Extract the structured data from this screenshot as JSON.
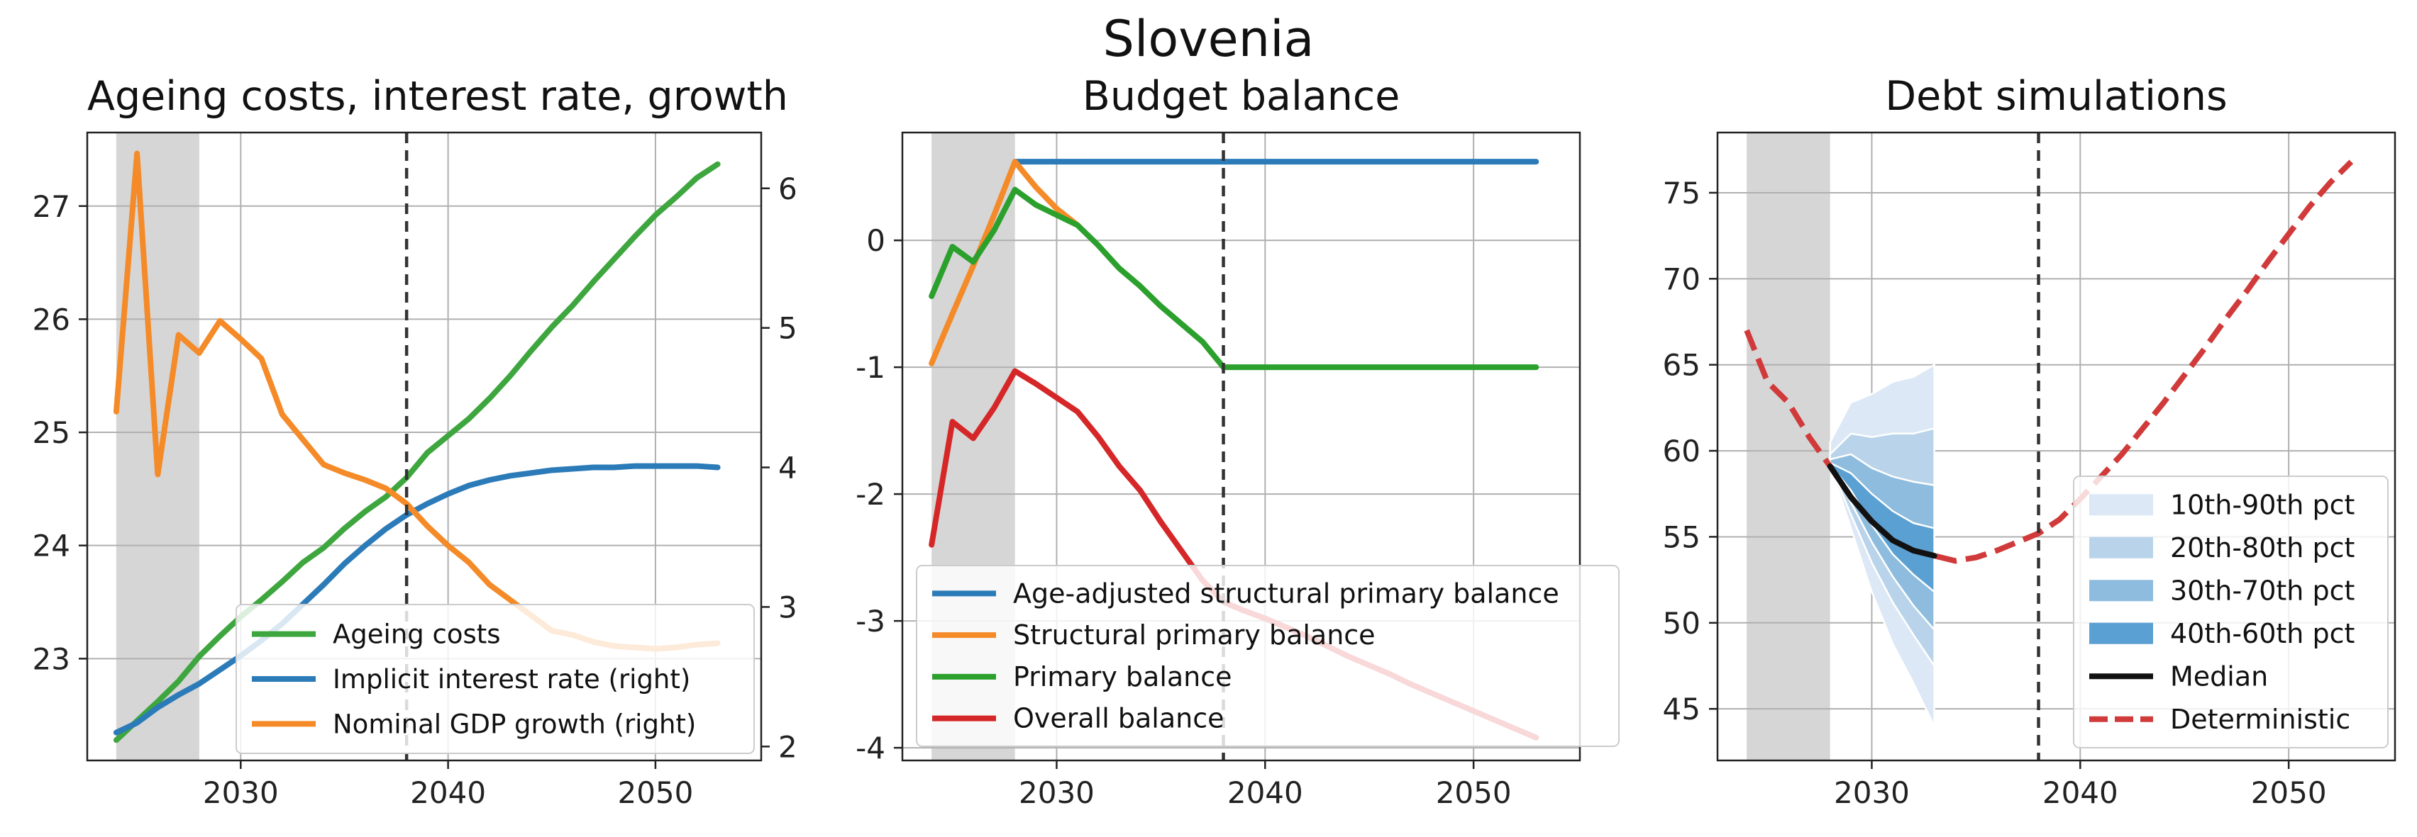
{
  "suptitle": "Slovenia",
  "chart_data": [
    {
      "type": "line",
      "title": "Ageing costs, interest rate, growth",
      "xlim": [
        2022.6,
        2055.1
      ],
      "ylim": [
        22.1,
        27.65
      ],
      "ylim_right": [
        1.9,
        6.4
      ],
      "xticks": [
        "2030",
        "2040",
        "2050"
      ],
      "yticks": [
        "23",
        "24",
        "25",
        "26",
        "27"
      ],
      "yticks_right": [
        "2",
        "3",
        "4",
        "5",
        "6"
      ],
      "shaded_x": [
        2024,
        2028
      ],
      "vline_x": 2038,
      "grid": true,
      "legend_position": "lower-right",
      "series": [
        {
          "name": "Ageing costs",
          "axis": "left",
          "color": "#3ea63e",
          "x": [
            2024,
            2025,
            2026,
            2027,
            2028,
            2029,
            2030,
            2031,
            2032,
            2033,
            2034,
            2035,
            2036,
            2037,
            2038,
            2039,
            2040,
            2041,
            2042,
            2043,
            2044,
            2045,
            2046,
            2047,
            2048,
            2049,
            2050,
            2051,
            2052,
            2053
          ],
          "y": [
            22.28,
            22.45,
            22.62,
            22.8,
            23.02,
            23.2,
            23.37,
            23.52,
            23.68,
            23.85,
            23.98,
            24.15,
            24.3,
            24.43,
            24.6,
            24.82,
            24.97,
            25.12,
            25.3,
            25.5,
            25.72,
            25.93,
            26.12,
            26.33,
            26.53,
            26.73,
            26.92,
            27.08,
            27.25,
            27.37
          ]
        },
        {
          "name": "Implicit interest rate (right)",
          "axis": "right",
          "color": "#2b7bb9",
          "x": [
            2024,
            2025,
            2026,
            2027,
            2028,
            2029,
            2030,
            2031,
            2032,
            2033,
            2034,
            2035,
            2036,
            2037,
            2038,
            2039,
            2040,
            2041,
            2042,
            2043,
            2044,
            2045,
            2046,
            2047,
            2048,
            2049,
            2050,
            2051,
            2052,
            2053
          ],
          "y": [
            2.1,
            2.17,
            2.28,
            2.37,
            2.45,
            2.55,
            2.65,
            2.76,
            2.88,
            3.02,
            3.16,
            3.31,
            3.44,
            3.56,
            3.66,
            3.74,
            3.81,
            3.87,
            3.91,
            3.94,
            3.96,
            3.98,
            3.99,
            4.0,
            4.0,
            4.01,
            4.01,
            4.01,
            4.01,
            4.0
          ]
        },
        {
          "name": "Nominal GDP growth (right)",
          "axis": "right",
          "color": "#f58a28",
          "x": [
            2024,
            2025,
            2026,
            2027,
            2028,
            2029,
            2030,
            2031,
            2032,
            2033,
            2034,
            2035,
            2036,
            2037,
            2038,
            2039,
            2040,
            2041,
            2042,
            2043,
            2044,
            2045,
            2046,
            2047,
            2048,
            2049,
            2050,
            2051,
            2052,
            2053
          ],
          "y": [
            4.4,
            6.25,
            3.95,
            4.95,
            4.82,
            5.05,
            4.92,
            4.78,
            4.38,
            4.2,
            4.02,
            3.96,
            3.91,
            3.85,
            3.74,
            3.58,
            3.44,
            3.32,
            3.16,
            3.05,
            2.94,
            2.83,
            2.8,
            2.75,
            2.72,
            2.71,
            2.7,
            2.71,
            2.73,
            2.74
          ]
        }
      ]
    },
    {
      "type": "line",
      "title": "Budget balance",
      "xlim": [
        2022.6,
        2055.1
      ],
      "ylim": [
        -4.1,
        0.85
      ],
      "xticks": [
        "2030",
        "2040",
        "2050"
      ],
      "yticks": [
        "0",
        "-1",
        "-2",
        "-3",
        "-4"
      ],
      "shaded_x": [
        2024,
        2028
      ],
      "vline_x": 2038,
      "grid": true,
      "legend_position": "lower-left",
      "series": [
        {
          "name": "Age-adjusted structural primary balance",
          "color": "#2b7bb9",
          "x": [
            2028,
            2053
          ],
          "y": [
            0.62,
            0.62
          ]
        },
        {
          "name": "Structural primary balance",
          "color": "#f58a28",
          "x": [
            2024,
            2025,
            2026,
            2027,
            2028,
            2029,
            2030,
            2031
          ],
          "y": [
            -0.97,
            -0.58,
            -0.2,
            0.2,
            0.62,
            0.42,
            0.25,
            0.12
          ]
        },
        {
          "name": "Primary balance",
          "color": "#2ca02c",
          "x": [
            2024,
            2025,
            2026,
            2027,
            2028,
            2029,
            2030,
            2031,
            2032,
            2033,
            2034,
            2035,
            2036,
            2037,
            2038,
            2039,
            2040,
            2041,
            2042,
            2043,
            2044,
            2045,
            2046,
            2047,
            2048,
            2049,
            2050,
            2051,
            2052,
            2053
          ],
          "y": [
            -0.44,
            -0.05,
            -0.17,
            0.08,
            0.4,
            0.28,
            0.2,
            0.12,
            -0.04,
            -0.22,
            -0.36,
            -0.52,
            -0.66,
            -0.8,
            -1.0,
            -1.0,
            -1.0,
            -1.0,
            -1.0,
            -1.0,
            -1.0,
            -1.0,
            -1.0,
            -1.0,
            -1.0,
            -1.0,
            -1.0,
            -1.0,
            -1.0,
            -1.0
          ]
        },
        {
          "name": "Overall balance",
          "color": "#d62728",
          "x": [
            2024,
            2025,
            2026,
            2027,
            2028,
            2029,
            2030,
            2031,
            2032,
            2033,
            2034,
            2035,
            2036,
            2037,
            2038,
            2039,
            2040,
            2041,
            2042,
            2043,
            2044,
            2045,
            2046,
            2047,
            2048,
            2049,
            2050,
            2051,
            2052,
            2053
          ],
          "y": [
            -2.4,
            -1.43,
            -1.56,
            -1.32,
            -1.03,
            -1.13,
            -1.24,
            -1.35,
            -1.55,
            -1.78,
            -1.97,
            -2.22,
            -2.45,
            -2.68,
            -2.85,
            -2.92,
            -2.98,
            -3.05,
            -3.12,
            -3.2,
            -3.28,
            -3.35,
            -3.42,
            -3.5,
            -3.57,
            -3.64,
            -3.71,
            -3.78,
            -3.85,
            -3.92
          ]
        }
      ]
    },
    {
      "type": "area",
      "title": "Debt simulations",
      "xlim": [
        2022.6,
        2055.1
      ],
      "ylim": [
        42,
        78.5
      ],
      "xticks": [
        "2030",
        "2040",
        "2050"
      ],
      "yticks": [
        "45",
        "50",
        "55",
        "60",
        "65",
        "70",
        "75"
      ],
      "shaded_x": [
        2024,
        2028
      ],
      "vline_x": 2038,
      "grid": true,
      "legend_position": "lower-right",
      "fan": {
        "x": [
          2028,
          2029,
          2030,
          2031,
          2032,
          2033
        ],
        "bands": [
          {
            "name": "10th-90th pct",
            "color": "#dce8f5",
            "low": [
              59.2,
              55.5,
              51.8,
              48.8,
              46.5,
              44.0
            ],
            "high": [
              60.5,
              62.8,
              63.3,
              64.0,
              64.3,
              65.0
            ]
          },
          {
            "name": "20th-80th pct",
            "color": "#b9d4ea",
            "low": [
              59.2,
              56.3,
              53.5,
              51.2,
              49.3,
              47.5
            ],
            "high": [
              59.8,
              61.0,
              60.8,
              61.0,
              61.0,
              61.3
            ]
          },
          {
            "name": "30th-70th pct",
            "color": "#8ebcde",
            "low": [
              59.2,
              57.0,
              54.7,
              52.7,
              51.0,
              49.6
            ],
            "high": [
              59.5,
              59.8,
              59.0,
              58.5,
              58.2,
              58.0
            ]
          },
          {
            "name": "40th-60th pct",
            "color": "#5aa0d2",
            "low": [
              59.2,
              57.7,
              55.7,
              54.0,
              52.8,
              51.8
            ],
            "high": [
              59.3,
              58.7,
              57.5,
              56.5,
              55.8,
              55.5
            ]
          }
        ],
        "median": {
          "name": "Median",
          "color": "#111111",
          "y": [
            59.1,
            57.3,
            55.9,
            54.8,
            54.2,
            53.9
          ]
        }
      },
      "series": [
        {
          "name": "Deterministic",
          "color": "#d13a3a",
          "dashed": true,
          "x": [
            2024,
            2025,
            2026,
            2027,
            2028,
            2029,
            2030,
            2031,
            2032,
            2033,
            2034,
            2035,
            2036,
            2037,
            2038,
            2039,
            2040,
            2041,
            2042,
            2043,
            2044,
            2045,
            2046,
            2047,
            2048,
            2049,
            2050,
            2051,
            2052,
            2053
          ],
          "y": [
            67.0,
            64.0,
            62.8,
            60.8,
            59.1,
            57.3,
            55.9,
            54.8,
            54.2,
            53.9,
            53.6,
            53.8,
            54.2,
            54.7,
            55.2,
            56.0,
            57.2,
            58.5,
            59.8,
            61.3,
            62.8,
            64.4,
            66.0,
            67.7,
            69.3,
            71.0,
            72.6,
            74.2,
            75.6,
            76.8
          ]
        }
      ]
    }
  ]
}
